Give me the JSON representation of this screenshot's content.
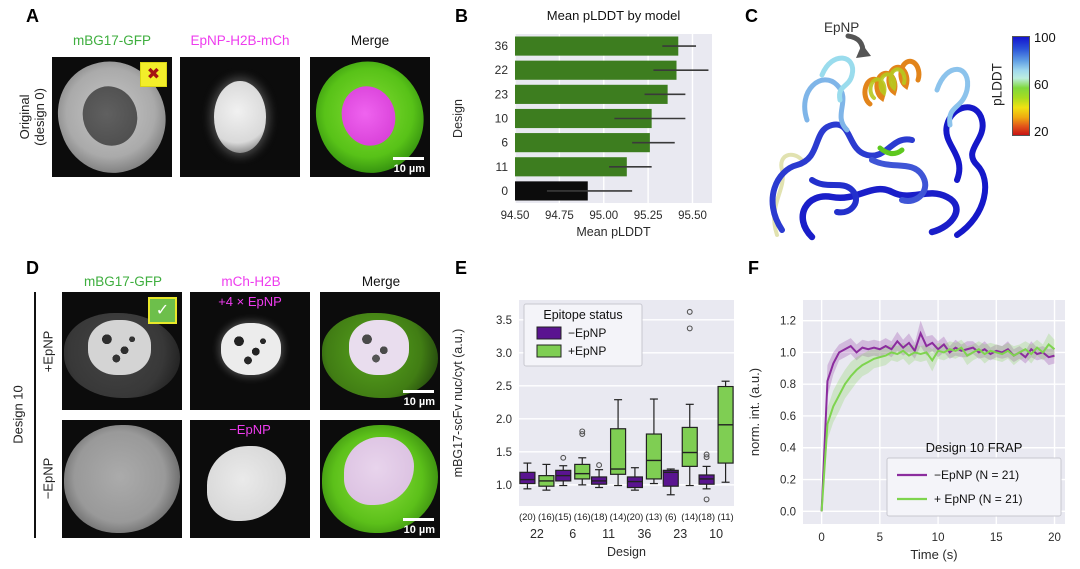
{
  "colors": {
    "gfp_green_text": "#3eae3e",
    "magenta_text": "#ee3cee",
    "bar_green": "#3d7d1f",
    "bar_black": "#0c0c0c",
    "box_purple": "#5a1490",
    "box_green": "#7fce53",
    "line_purple": "#8b2c9e",
    "line_green": "#7ed44e",
    "plot_bg": "#e9e9f1"
  },
  "panelA": {
    "label": "A",
    "col_titles": [
      "mBG17-GFP",
      "EpNP-H2B-mCh",
      "Merge"
    ],
    "row_label_line1": "Original",
    "row_label_line2": "(design 0)",
    "badge_icon": "cross",
    "badge_glyph": "✖",
    "scale_bar_label": "10 µm"
  },
  "panelC": {
    "label": "C",
    "annotation": "EpNP",
    "colorbar": {
      "label": "pLDDT",
      "ticks": [
        "100",
        "60",
        "20"
      ]
    }
  },
  "panelD": {
    "label": "D",
    "col_titles": [
      "mBG17-GFP",
      "mCh-H2B",
      "Merge"
    ],
    "group_label": "Design 10",
    "row_labels": [
      "+EpNP",
      "−EpNP"
    ],
    "overlay_labels": [
      "+4 × EpNP",
      "−EpNP"
    ],
    "badge_icon": "check",
    "badge_glyph": "✓",
    "scale_bar_label": "10 µm"
  },
  "chart_data": [
    {
      "id": "chartB",
      "panel_label": "B",
      "type": "bar",
      "orientation": "horizontal",
      "title": "Mean pLDDT by model",
      "xlabel": "Mean pLDDT",
      "ylabel": "Design",
      "categories": [
        "36",
        "22",
        "23",
        "10",
        "6",
        "11",
        "0"
      ],
      "values": [
        95.42,
        95.41,
        95.36,
        95.27,
        95.26,
        95.13,
        94.91
      ],
      "error_low": [
        95.33,
        95.28,
        95.23,
        95.06,
        95.16,
        95.03,
        94.68
      ],
      "error_high": [
        95.52,
        95.59,
        95.46,
        95.46,
        95.4,
        95.27,
        95.16
      ],
      "bar_colors": [
        "#3d7d1f",
        "#3d7d1f",
        "#3d7d1f",
        "#3d7d1f",
        "#3d7d1f",
        "#3d7d1f",
        "#0c0c0c"
      ],
      "xlim": [
        94.5,
        95.61
      ],
      "xticks": [
        94.5,
        94.75,
        95.0,
        95.25,
        95.5
      ],
      "xtick_labels": [
        "94.50",
        "94.75",
        "95.00",
        "95.25",
        "95.50"
      ],
      "grid": "vertical"
    },
    {
      "id": "chartE",
      "panel_label": "E",
      "type": "box",
      "xlabel": "Design",
      "ylabel": "mBG17-scFv nuc/cyt (a.u.)",
      "legend_title": "Epitope status",
      "categories": [
        "22",
        "6",
        "11",
        "36",
        "23",
        "10"
      ],
      "ylim": [
        0.68,
        3.8
      ],
      "yticks": [
        1.0,
        1.5,
        2.0,
        2.5,
        3.0,
        3.5
      ],
      "ytick_labels": [
        "1.0",
        "1.5",
        "2.0",
        "2.5",
        "3.0",
        "3.5"
      ],
      "sample_sizes": [
        [
          "(20)",
          "(16)"
        ],
        [
          "(15)",
          "(16)"
        ],
        [
          "(18)",
          "(14)"
        ],
        [
          "(20)",
          "(13)"
        ],
        [
          "(6)",
          "(14)"
        ],
        [
          "(18)",
          "(11)"
        ]
      ],
      "series": [
        {
          "name": "−EpNP",
          "color": "#5a1490",
          "boxes": [
            {
              "whisker_low": 0.94,
              "q1": 1.02,
              "median": 1.08,
              "q3": 1.19,
              "whisker_high": 1.33,
              "outliers": []
            },
            {
              "whisker_low": 0.99,
              "q1": 1.06,
              "median": 1.14,
              "q3": 1.22,
              "whisker_high": 1.29,
              "outliers": [
                1.41
              ]
            },
            {
              "whisker_low": 0.96,
              "q1": 1.01,
              "median": 1.06,
              "q3": 1.12,
              "whisker_high": 1.23,
              "outliers": [
                1.3
              ]
            },
            {
              "whisker_low": 0.92,
              "q1": 0.96,
              "median": 1.05,
              "q3": 1.12,
              "whisker_high": 1.26,
              "outliers": []
            },
            {
              "whisker_low": 0.85,
              "q1": 0.98,
              "median": 1.19,
              "q3": 1.22,
              "whisker_high": 1.24,
              "outliers": []
            },
            {
              "whisker_low": 0.94,
              "q1": 1.01,
              "median": 1.09,
              "q3": 1.15,
              "whisker_high": 1.28,
              "outliers": [
                1.42,
                1.46,
                0.78
              ]
            }
          ]
        },
        {
          "name": "+EpNP",
          "color": "#7fce53",
          "boxes": [
            {
              "whisker_low": 0.92,
              "q1": 0.98,
              "median": 1.06,
              "q3": 1.14,
              "whisker_high": 1.31,
              "outliers": []
            },
            {
              "whisker_low": 1.0,
              "q1": 1.09,
              "median": 1.17,
              "q3": 1.31,
              "whisker_high": 1.41,
              "outliers": [
                1.77,
                1.81
              ]
            },
            {
              "whisker_low": 0.99,
              "q1": 1.16,
              "median": 1.24,
              "q3": 1.85,
              "whisker_high": 2.29,
              "outliers": []
            },
            {
              "whisker_low": 1.02,
              "q1": 1.09,
              "median": 1.37,
              "q3": 1.77,
              "whisker_high": 2.3,
              "outliers": []
            },
            {
              "whisker_low": 0.99,
              "q1": 1.28,
              "median": 1.49,
              "q3": 1.87,
              "whisker_high": 2.22,
              "outliers": [
                3.37,
                3.62
              ]
            },
            {
              "whisker_low": 1.04,
              "q1": 1.33,
              "median": 1.91,
              "q3": 2.49,
              "whisker_high": 2.57,
              "outliers": []
            }
          ]
        }
      ],
      "grid": "horizontal"
    },
    {
      "id": "chartF",
      "panel_label": "F",
      "type": "line",
      "xlabel": "Time (s)",
      "ylabel": "norm. int. (a.u.)",
      "legend_title": "Design 10 FRAP",
      "xlim": [
        -1.6,
        20.9
      ],
      "ylim": [
        -0.08,
        1.33
      ],
      "xticks": [
        0,
        5,
        10,
        15,
        20
      ],
      "xtick_labels": [
        "0",
        "5",
        "10",
        "15",
        "20"
      ],
      "yticks": [
        0.0,
        0.2,
        0.4,
        0.6,
        0.8,
        1.0,
        1.2
      ],
      "ytick_labels": [
        "0.0",
        "0.2",
        "0.4",
        "0.6",
        "0.8",
        "1.0",
        "1.2"
      ],
      "x": [
        0,
        0.5,
        1,
        1.5,
        2,
        2.5,
        3,
        3.5,
        4,
        4.5,
        5,
        5.5,
        6,
        6.5,
        7,
        7.5,
        8,
        8.5,
        9,
        9.5,
        10,
        10.5,
        11,
        11.5,
        12,
        12.5,
        13,
        13.5,
        14,
        14.5,
        15,
        15.5,
        16,
        16.5,
        17,
        17.5,
        18,
        18.5,
        19,
        19.5,
        20
      ],
      "series": [
        {
          "name": "−EpNP (N = 21)",
          "color": "#8b2c9e",
          "y": [
            0,
            0.82,
            0.93,
            1.0,
            1.02,
            1.04,
            1.0,
            1.03,
            1.02,
            1.03,
            1.02,
            1.04,
            1.02,
            1.07,
            1.03,
            1.06,
            1.01,
            1.12,
            1.04,
            1.06,
            1.02,
            1.05,
            1.0,
            1.03,
            1.01,
            1.02,
            1.03,
            1.0,
            1.02,
            0.99,
            1.01,
            1.0,
            1.02,
            0.98,
            1.0,
            0.97,
            1.02,
            0.99,
            1.0,
            0.97,
            0.98
          ],
          "band": [
            0.02,
            0.1,
            0.07,
            0.05,
            0.05,
            0.05,
            0.05,
            0.05,
            0.05,
            0.05,
            0.05,
            0.05,
            0.05,
            0.06,
            0.05,
            0.06,
            0.05,
            0.08,
            0.06,
            0.05,
            0.05,
            0.05,
            0.04,
            0.05,
            0.04,
            0.05,
            0.04,
            0.04,
            0.05,
            0.04,
            0.04,
            0.04,
            0.05,
            0.04,
            0.04,
            0.04,
            0.05,
            0.04,
            0.04,
            0.05,
            0.05
          ]
        },
        {
          "name": "+ EpNP (N = 21)",
          "color": "#7ed44e",
          "y": [
            0,
            0.55,
            0.66,
            0.73,
            0.8,
            0.85,
            0.89,
            0.92,
            0.94,
            0.96,
            0.97,
            0.98,
            1.0,
            0.99,
            1.01,
            0.98,
            1.0,
            0.99,
            1.0,
            0.95,
            1.01,
            1.0,
            1.02,
            1.01,
            1.03,
            0.98,
            1.0,
            1.02,
            0.99,
            1.01,
            1.0,
            0.99,
            1.01,
            0.98,
            1.0,
            1.02,
            0.99,
            1.03,
            1.0,
            1.05,
            1.02
          ],
          "band": [
            0.02,
            0.1,
            0.1,
            0.1,
            0.09,
            0.09,
            0.08,
            0.07,
            0.07,
            0.06,
            0.06,
            0.06,
            0.05,
            0.05,
            0.05,
            0.06,
            0.05,
            0.05,
            0.05,
            0.07,
            0.05,
            0.05,
            0.05,
            0.05,
            0.05,
            0.06,
            0.05,
            0.05,
            0.06,
            0.05,
            0.05,
            0.05,
            0.05,
            0.06,
            0.05,
            0.05,
            0.06,
            0.05,
            0.05,
            0.07,
            0.06
          ]
        }
      ],
      "grid": "both"
    }
  ]
}
